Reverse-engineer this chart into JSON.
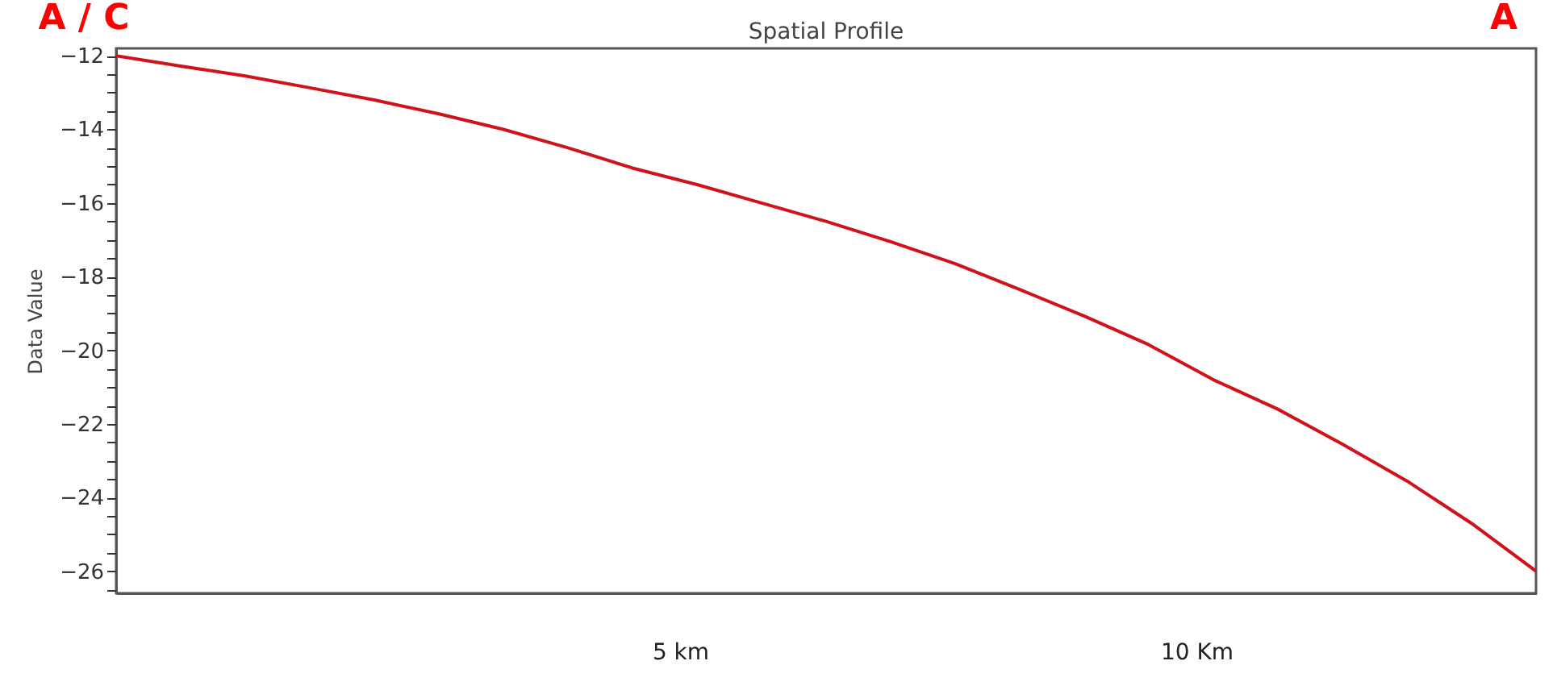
{
  "chart_data": {
    "type": "line",
    "title": "Spatial Profile",
    "ylabel": "Data Value",
    "categories": [
      null,
      null,
      null,
      null,
      null,
      null,
      null,
      null,
      null,
      null,
      null,
      null,
      null,
      null,
      null,
      null,
      null,
      null,
      null,
      null,
      null,
      null,
      null
    ],
    "series": [
      {
        "color": "#d0121b",
        "values": [
          -12.0,
          -12.28,
          -12.55,
          -12.87,
          -13.2,
          -13.58,
          -14.0,
          -14.5,
          -15.05,
          -15.5,
          -16.0,
          -16.5,
          -17.05,
          -17.65,
          -18.35,
          -19.07,
          -19.85,
          -20.8,
          -21.6,
          -22.55,
          -23.55,
          -24.7,
          -26.0
        ]
      }
    ],
    "ylim": [
      -26.6,
      -11.8
    ],
    "yticks": [
      -12,
      {
        "value": -12.5,
        "label": null
      },
      {
        "value": -13,
        "label": null
      },
      {
        "value": -13.5,
        "label": null
      },
      -14,
      {
        "value": -14.5,
        "label": null
      },
      {
        "value": -15,
        "label": null
      },
      {
        "value": -15.5,
        "label": null
      },
      -16,
      {
        "value": -16.5,
        "label": null
      },
      {
        "value": -17,
        "label": null
      },
      {
        "value": -17.5,
        "label": null
      },
      -18,
      {
        "value": -18.5,
        "label": null
      },
      {
        "value": -19,
        "label": null
      },
      {
        "value": -19.5,
        "label": null
      },
      -20,
      {
        "value": -20.5,
        "label": null
      },
      {
        "value": -21,
        "label": null
      },
      {
        "value": -21.5,
        "label": null
      },
      -22,
      {
        "value": -22.5,
        "label": null
      },
      {
        "value": -23,
        "label": null
      },
      {
        "value": -23.5,
        "label": null
      },
      -24,
      {
        "value": -24.5,
        "label": null
      },
      {
        "value": -25,
        "label": null
      },
      {
        "value": -25.5,
        "label": null
      },
      -26,
      {
        "value": -26.5,
        "label": null
      }
    ],
    "tick_labels": "y",
    "grid": false,
    "marker": "none",
    "line_style": "solid",
    "annotations": [
      "A / C",
      "A",
      "5 km",
      "10 Km"
    ]
  }
}
